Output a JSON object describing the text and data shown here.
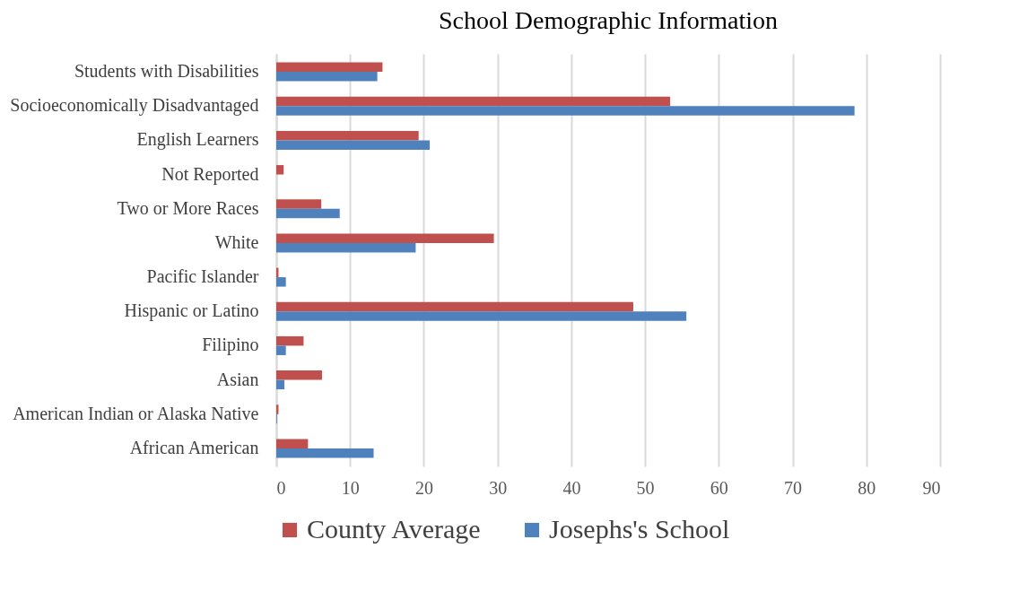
{
  "chart_data": {
    "type": "bar",
    "orientation": "horizontal",
    "title": "School Demographic Information",
    "categories": [
      "Students with Disabilities",
      "Socioeconomically Disadvantaged",
      "English Learners",
      "Not Reported",
      "Two or More Races",
      "White",
      "Pacific Islander",
      "Hispanic or Latino",
      "Filipino",
      "Asian",
      "American Indian or Alaska Native",
      "African American"
    ],
    "series": [
      {
        "name": "County Average",
        "color": "#c0504d",
        "values": [
          14.4,
          53.4,
          19.3,
          1.0,
          6.1,
          29.5,
          0.3,
          48.4,
          3.7,
          6.2,
          0.3,
          4.3
        ]
      },
      {
        "name": "Josephs's School",
        "color": "#4f81bd",
        "values": [
          13.7,
          78.4,
          20.8,
          0,
          8.6,
          18.9,
          1.3,
          55.6,
          1.3,
          1.1,
          0.1,
          13.2
        ]
      }
    ],
    "xlim": [
      0,
      90
    ],
    "xticks": [
      0,
      10,
      20,
      30,
      40,
      50,
      60,
      70,
      80,
      90
    ],
    "grid": "x",
    "legend": "bottom"
  }
}
